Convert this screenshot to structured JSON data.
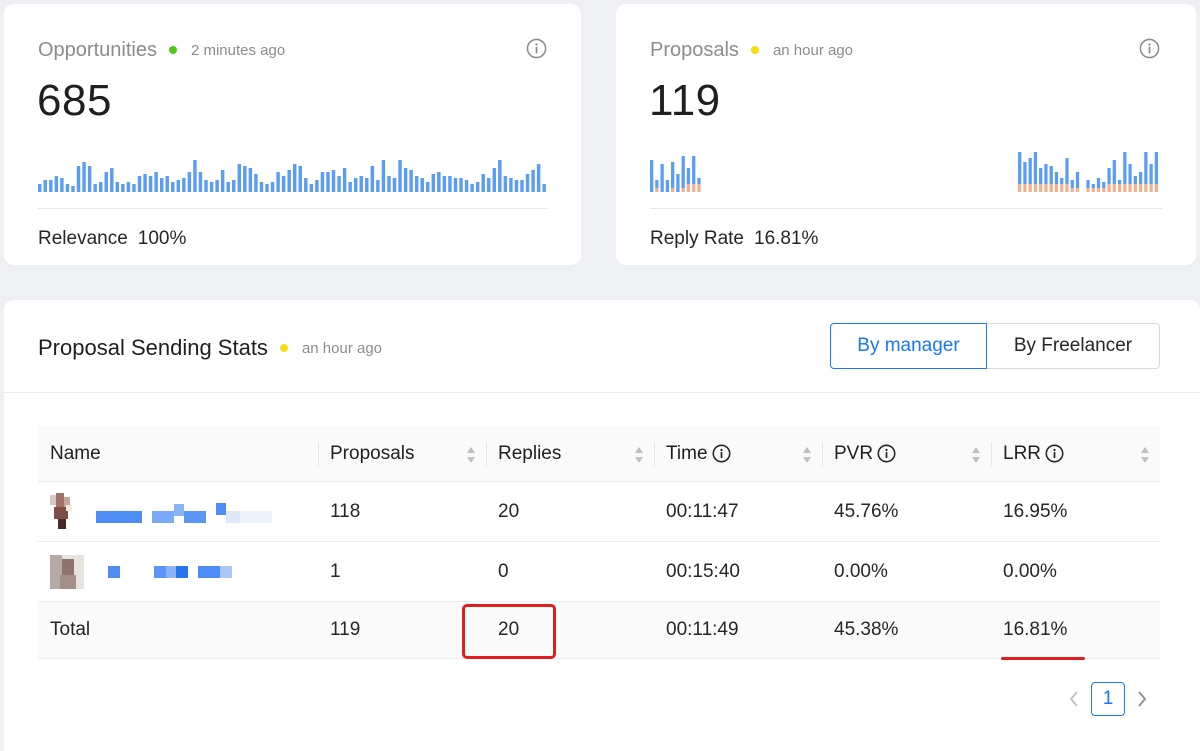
{
  "opportunities": {
    "title": "Opportunities",
    "updated": "2 minutes ago",
    "status_color": "#52c41a",
    "value": "685",
    "footer_label": "Relevance",
    "footer_value": "100%",
    "sparkline": [
      8,
      12,
      12,
      16,
      14,
      8,
      6,
      26,
      30,
      26,
      8,
      10,
      20,
      24,
      10,
      8,
      10,
      8,
      16,
      18,
      16,
      20,
      14,
      16,
      10,
      12,
      14,
      20,
      32,
      20,
      12,
      10,
      12,
      22,
      10,
      12,
      28,
      26,
      24,
      18,
      10,
      8,
      10,
      20,
      16,
      22,
      28,
      26,
      14,
      8,
      12,
      20,
      20,
      22,
      16,
      24,
      10,
      14,
      16,
      14,
      26,
      12,
      32,
      16,
      14,
      32,
      24,
      22,
      16,
      14,
      10,
      18,
      20,
      16,
      16,
      14,
      14,
      12,
      8,
      10,
      18,
      14,
      24,
      32,
      16,
      14,
      12,
      12,
      18,
      22,
      28,
      8
    ]
  },
  "proposals": {
    "title": "Proposals",
    "updated": "an hour ago",
    "status_color": "#fadb14",
    "value": "119",
    "footer_label": "Reply Rate",
    "footer_value": "16.81%",
    "sparkline": [
      {
        "v": 32,
        "r": 0
      },
      {
        "v": 12,
        "r": 4
      },
      {
        "v": 28,
        "r": 0
      },
      {
        "v": 12,
        "r": 0
      },
      {
        "v": 30,
        "r": 4
      },
      {
        "v": 18,
        "r": 0
      },
      {
        "v": 36,
        "r": 4
      },
      {
        "v": 24,
        "r": 8
      },
      {
        "v": 36,
        "r": 8
      },
      {
        "v": 14,
        "r": 8
      },
      {
        "v": 0,
        "r": 0
      },
      {
        "v": 0,
        "r": 0
      },
      {
        "v": 0,
        "r": 0
      },
      {
        "v": 0,
        "r": 0
      },
      {
        "v": 0,
        "r": 0
      },
      {
        "v": 0,
        "r": 0
      },
      {
        "v": 0,
        "r": 0
      },
      {
        "v": 0,
        "r": 0
      },
      {
        "v": 0,
        "r": 0
      },
      {
        "v": 0,
        "r": 0
      },
      {
        "v": 0,
        "r": 0
      },
      {
        "v": 0,
        "r": 0
      },
      {
        "v": 0,
        "r": 0
      },
      {
        "v": 0,
        "r": 0
      },
      {
        "v": 0,
        "r": 0
      },
      {
        "v": 0,
        "r": 0
      },
      {
        "v": 0,
        "r": 0
      },
      {
        "v": 0,
        "r": 0
      },
      {
        "v": 0,
        "r": 0
      },
      {
        "v": 0,
        "r": 0
      },
      {
        "v": 0,
        "r": 0
      },
      {
        "v": 0,
        "r": 0
      },
      {
        "v": 0,
        "r": 0
      },
      {
        "v": 0,
        "r": 0
      },
      {
        "v": 0,
        "r": 0
      },
      {
        "v": 0,
        "r": 0
      },
      {
        "v": 0,
        "r": 0
      },
      {
        "v": 0,
        "r": 0
      },
      {
        "v": 0,
        "r": 0
      },
      {
        "v": 0,
        "r": 0
      },
      {
        "v": 0,
        "r": 0
      },
      {
        "v": 0,
        "r": 0
      },
      {
        "v": 0,
        "r": 0
      },
      {
        "v": 0,
        "r": 0
      },
      {
        "v": 0,
        "r": 0
      },
      {
        "v": 0,
        "r": 0
      },
      {
        "v": 0,
        "r": 0
      },
      {
        "v": 0,
        "r": 0
      },
      {
        "v": 0,
        "r": 0
      },
      {
        "v": 0,
        "r": 0
      },
      {
        "v": 0,
        "r": 0
      },
      {
        "v": 0,
        "r": 0
      },
      {
        "v": 0,
        "r": 0
      },
      {
        "v": 0,
        "r": 0
      },
      {
        "v": 0,
        "r": 0
      },
      {
        "v": 0,
        "r": 0
      },
      {
        "v": 0,
        "r": 0
      },
      {
        "v": 0,
        "r": 0
      },
      {
        "v": 0,
        "r": 0
      },
      {
        "v": 0,
        "r": 0
      },
      {
        "v": 0,
        "r": 0
      },
      {
        "v": 0,
        "r": 0
      },
      {
        "v": 0,
        "r": 0
      },
      {
        "v": 0,
        "r": 0
      },
      {
        "v": 0,
        "r": 0
      },
      {
        "v": 0,
        "r": 0
      },
      {
        "v": 0,
        "r": 0
      },
      {
        "v": 0,
        "r": 0
      },
      {
        "v": 0,
        "r": 0
      },
      {
        "v": 0,
        "r": 0
      },
      {
        "v": 40,
        "r": 8
      },
      {
        "v": 30,
        "r": 8
      },
      {
        "v": 34,
        "r": 8
      },
      {
        "v": 40,
        "r": 8
      },
      {
        "v": 24,
        "r": 8
      },
      {
        "v": 28,
        "r": 8
      },
      {
        "v": 26,
        "r": 8
      },
      {
        "v": 20,
        "r": 8
      },
      {
        "v": 14,
        "r": 8
      },
      {
        "v": 34,
        "r": 8
      },
      {
        "v": 12,
        "r": 4
      },
      {
        "v": 20,
        "r": 4
      },
      {
        "v": 0,
        "r": 0
      },
      {
        "v": 12,
        "r": 4
      },
      {
        "v": 8,
        "r": 4
      },
      {
        "v": 14,
        "r": 4
      },
      {
        "v": 10,
        "r": 4
      },
      {
        "v": 24,
        "r": 8
      },
      {
        "v": 32,
        "r": 8
      },
      {
        "v": 12,
        "r": 8
      },
      {
        "v": 40,
        "r": 8
      },
      {
        "v": 28,
        "r": 8
      },
      {
        "v": 16,
        "r": 8
      },
      {
        "v": 20,
        "r": 8
      },
      {
        "v": 40,
        "r": 8
      },
      {
        "v": 28,
        "r": 8
      },
      {
        "v": 40,
        "r": 8
      }
    ],
    "rest_color": "#f0b18f"
  },
  "stats": {
    "title": "Proposal Sending Stats",
    "updated": "an hour ago",
    "status_color": "#fadb14",
    "toggle_manager": "By manager",
    "toggle_freelancer": "By Freelancer",
    "columns": [
      "Name",
      "Proposals",
      "Replies",
      "Time",
      "PVR",
      "LRR"
    ],
    "rows": [
      {
        "proposals": "118",
        "replies": "20",
        "time": "00:11:47",
        "pvr": "45.76%",
        "lrr": "16.95%"
      },
      {
        "proposals": "1",
        "replies": "0",
        "time": "00:15:40",
        "pvr": "0.00%",
        "lrr": "0.00%"
      }
    ],
    "total": {
      "name": "Total",
      "proposals": "119",
      "replies": "20",
      "time": "00:11:49",
      "pvr": "45.38%",
      "lrr": "16.81%"
    }
  },
  "pagination": {
    "current": "1",
    "prev_icon": "chevron-left-icon",
    "next_icon": "chevron-right-icon"
  },
  "colors": {
    "accent": "#1677ff",
    "bar": "#5b9cf4",
    "highlight": "#e01e1e"
  }
}
